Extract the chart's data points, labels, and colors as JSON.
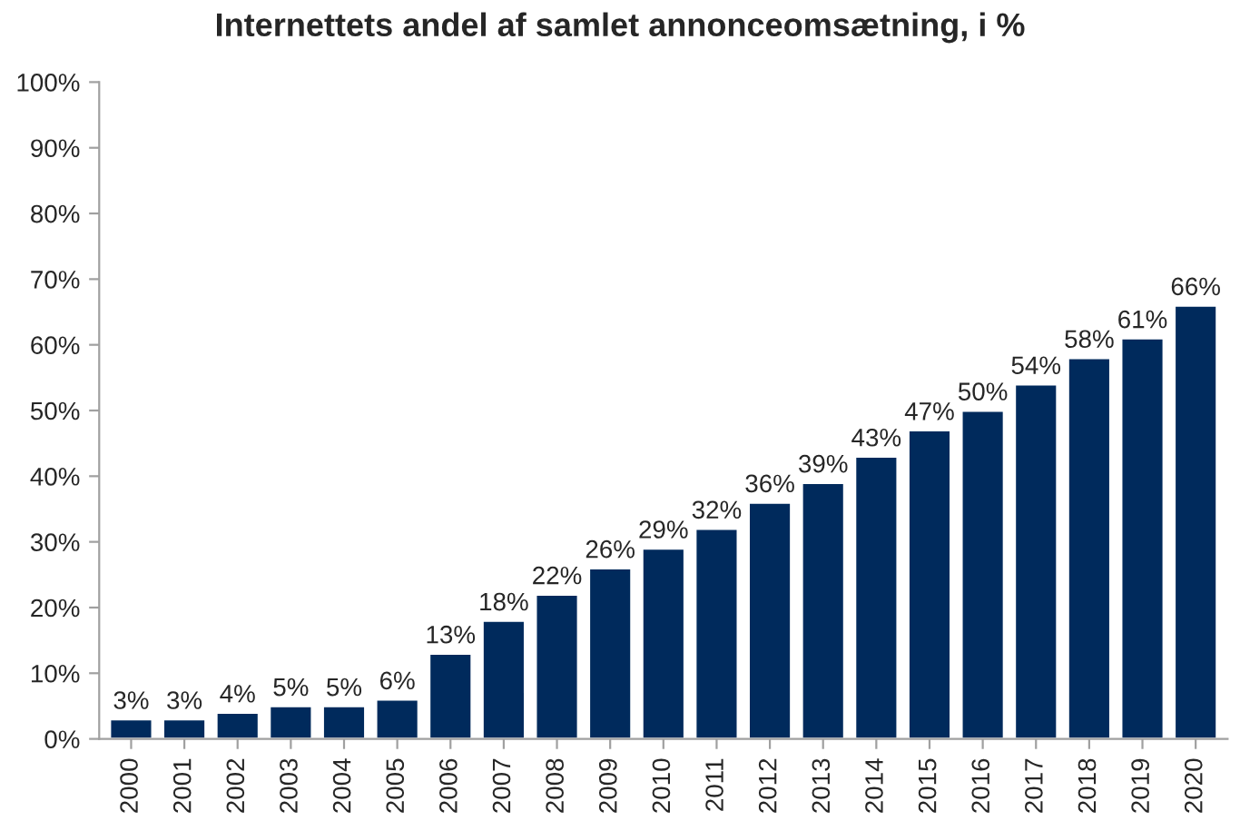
{
  "chart_data": {
    "type": "bar",
    "title": "Internettets andel af samlet annonceomsætning, i %",
    "categories": [
      "2000",
      "2001",
      "2002",
      "2003",
      "2004",
      "2005",
      "2006",
      "2007",
      "2008",
      "2009",
      "2010",
      "2011",
      "2012",
      "2013",
      "2014",
      "2015",
      "2016",
      "2017",
      "2018",
      "2019",
      "2020"
    ],
    "values": [
      3,
      3,
      4,
      5,
      5,
      6,
      13,
      18,
      22,
      26,
      29,
      32,
      36,
      39,
      43,
      47,
      50,
      54,
      58,
      61,
      66
    ],
    "value_labels": [
      "3%",
      "3%",
      "4%",
      "5%",
      "5%",
      "6%",
      "13%",
      "18%",
      "22%",
      "26%",
      "29%",
      "32%",
      "36%",
      "39%",
      "43%",
      "47%",
      "50%",
      "54%",
      "58%",
      "61%",
      "66%"
    ],
    "color": "#002a5c",
    "ylim": [
      0,
      100
    ],
    "yticks": [
      {
        "value": 0,
        "label": "0%"
      },
      {
        "value": 10,
        "label": "10%"
      },
      {
        "value": 20,
        "label": "20%"
      },
      {
        "value": 30,
        "label": "30%"
      },
      {
        "value": 40,
        "label": "40%"
      },
      {
        "value": 50,
        "label": "50%"
      },
      {
        "value": 60,
        "label": "60%"
      },
      {
        "value": 70,
        "label": "70%"
      },
      {
        "value": 80,
        "label": "80%"
      },
      {
        "value": 90,
        "label": "90%"
      },
      {
        "value": 100,
        "label": "100%"
      }
    ],
    "grid": false
  }
}
